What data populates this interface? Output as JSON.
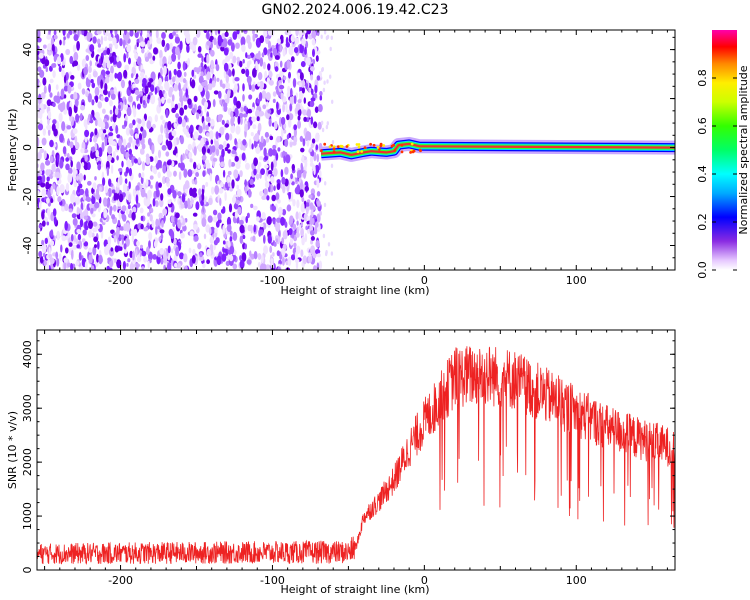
{
  "title": "GN02.2024.006.19.42.C23",
  "colors": {
    "signal": "#f03030",
    "trace": "#ee2222",
    "noise": "#7a00ff",
    "axis": "#000000"
  },
  "chart_data": [
    {
      "type": "heatmap",
      "xlabel": "Height of straight line (km)",
      "ylabel": "Frequency (Hz)",
      "xlim": [
        -255,
        165
      ],
      "ylim": [
        -50,
        48
      ],
      "xticks": [
        -200,
        -100,
        0,
        100
      ],
      "yticks": [
        -40,
        -20,
        0,
        20,
        40
      ],
      "colorbar": {
        "label": "Normalized spectral amplitude",
        "range": [
          0,
          1
        ],
        "ticks": [
          0.0,
          0.2,
          0.4,
          0.6,
          0.8
        ],
        "colormap": "rainbow"
      },
      "noise_region_x": [
        -255,
        -68
      ],
      "signal_line": [
        {
          "x": -68,
          "y": -2.5
        },
        {
          "x": -55,
          "y": -2.0
        },
        {
          "x": -48,
          "y": -3.0
        },
        {
          "x": -40,
          "y": -2.0
        },
        {
          "x": -35,
          "y": -1.5
        },
        {
          "x": -25,
          "y": -2.0
        },
        {
          "x": -20,
          "y": -1.5
        },
        {
          "x": -17,
          "y": 1.0
        },
        {
          "x": -10,
          "y": 1.5
        },
        {
          "x": -3,
          "y": 0.5
        },
        {
          "x": 0,
          "y": 0.5
        },
        {
          "x": 165,
          "y": 0.0
        }
      ]
    },
    {
      "type": "line",
      "xlabel": "Height of straight line (km)",
      "ylabel": "SNR (10 * v/v)",
      "xlim": [
        -255,
        165
      ],
      "ylim": [
        0,
        4450
      ],
      "xticks": [
        -200,
        -100,
        0,
        100
      ],
      "yticks": [
        0,
        1000,
        2000,
        3000,
        4000
      ],
      "envelope": [
        {
          "x": -255,
          "y": 300
        },
        {
          "x": -150,
          "y": 320
        },
        {
          "x": -50,
          "y": 330
        },
        {
          "x": -45,
          "y": 420
        },
        {
          "x": -40,
          "y": 1000
        },
        {
          "x": -30,
          "y": 1300
        },
        {
          "x": -20,
          "y": 1700
        },
        {
          "x": -10,
          "y": 2300
        },
        {
          "x": 0,
          "y": 2800
        },
        {
          "x": 10,
          "y": 3200
        },
        {
          "x": 20,
          "y": 3650
        },
        {
          "x": 40,
          "y": 3700
        },
        {
          "x": 60,
          "y": 3600
        },
        {
          "x": 80,
          "y": 3300
        },
        {
          "x": 100,
          "y": 3000
        },
        {
          "x": 120,
          "y": 2700
        },
        {
          "x": 140,
          "y": 2500
        },
        {
          "x": 165,
          "y": 2300
        }
      ]
    }
  ]
}
